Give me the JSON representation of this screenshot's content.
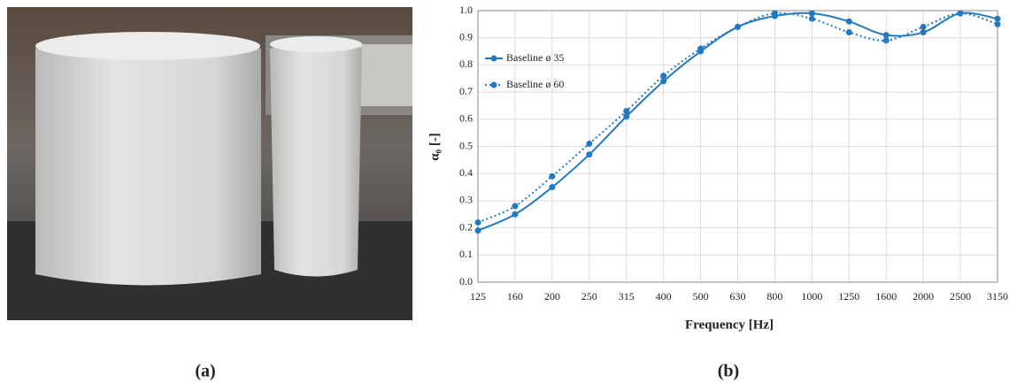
{
  "captions": [
    "(a)",
    "(b)"
  ],
  "chart_data": {
    "type": "line",
    "x_label": "Frequency [Hz]",
    "y_label": "α₀ [-]",
    "categories": [
      "125",
      "160",
      "200",
      "250",
      "315",
      "400",
      "500",
      "630",
      "800",
      "1000",
      "1250",
      "1600",
      "2000",
      "2500",
      "3150"
    ],
    "series": [
      {
        "name": "Baseline ø 35",
        "color": "#2379c0",
        "dash": "solid",
        "values": [
          0.19,
          0.25,
          0.35,
          0.47,
          0.61,
          0.74,
          0.85,
          0.94,
          0.98,
          0.99,
          0.96,
          0.91,
          0.92,
          0.99,
          0.97
        ]
      },
      {
        "name": "Baseline ø 60",
        "color": "#2379c0",
        "dash": "dotted",
        "values": [
          0.22,
          0.28,
          0.39,
          0.51,
          0.63,
          0.76,
          0.86,
          0.94,
          0.99,
          0.97,
          0.92,
          0.89,
          0.94,
          0.99,
          0.95
        ]
      }
    ],
    "ylim": [
      0,
      1
    ],
    "yticks": [
      {
        "value": 0,
        "label": "0.0"
      },
      0.1,
      0.2,
      0.3,
      0.4,
      0.5,
      0.6,
      0.7,
      0.8,
      0.9,
      {
        "value": 1,
        "label": "1.0"
      }
    ],
    "grid": true,
    "legend": "upper left"
  }
}
